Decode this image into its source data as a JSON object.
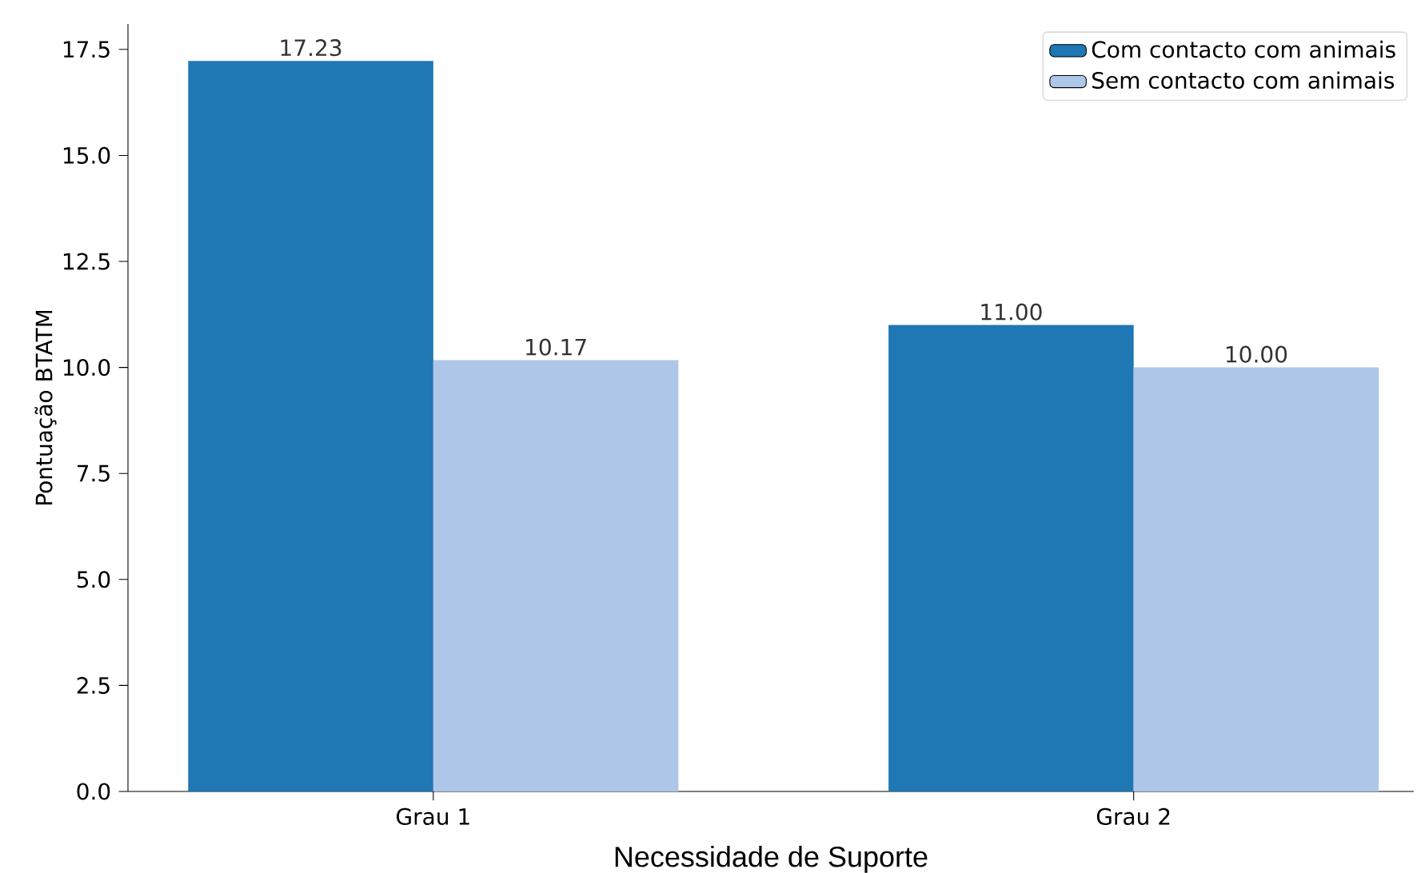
{
  "chart_data": {
    "type": "bar",
    "xlabel": "Necessidade de Suporte",
    "ylabel": "Pontuação BTATM",
    "categories": [
      "Grau 1",
      "Grau 2"
    ],
    "series": [
      {
        "name": "Com contacto com animais",
        "color": "#1f77b4",
        "values": [
          17.23,
          11.0
        ],
        "value_labels": [
          "17.23",
          "11.00"
        ]
      },
      {
        "name": "Sem contacto com animais",
        "color": "#aec7e8",
        "values": [
          10.17,
          10.0
        ],
        "value_labels": [
          "10.17",
          "10.00"
        ]
      }
    ],
    "ylim": [
      0,
      18.1
    ],
    "yticks": [
      {
        "value": 0,
        "label": "0.0"
      },
      {
        "value": 2.5,
        "label": "2.5"
      },
      {
        "value": 5,
        "label": "5.0"
      },
      {
        "value": 7.5,
        "label": "7.5"
      },
      {
        "value": 10,
        "label": "10.0"
      },
      {
        "value": 12.5,
        "label": "12.5"
      },
      {
        "value": 15,
        "label": "15.0"
      },
      {
        "value": 17.5,
        "label": "17.5"
      }
    ],
    "legend": "top right"
  }
}
